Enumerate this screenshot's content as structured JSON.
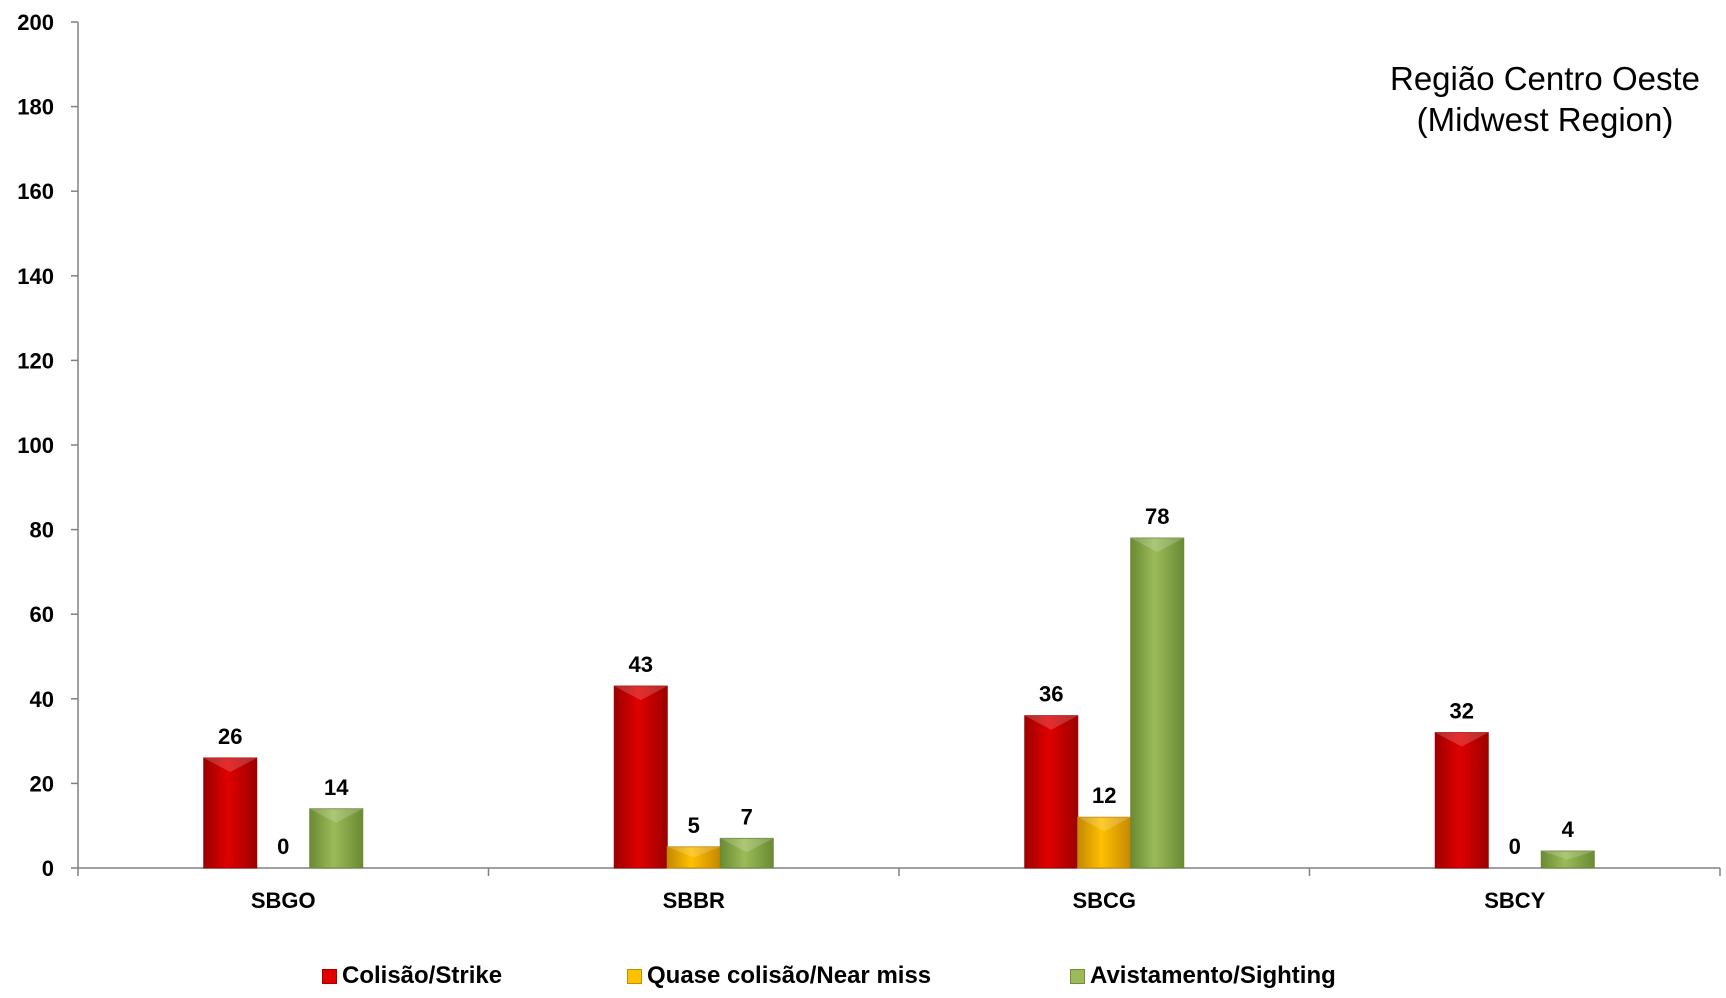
{
  "chart_data": {
    "type": "bar",
    "title_line1": "Região Centro Oeste",
    "title_line2": "(Midwest Region)",
    "categories": [
      "SBGO",
      "SBBR",
      "SBCG",
      "SBCY"
    ],
    "series": [
      {
        "name": "Colisão/Strike",
        "values": [
          26,
          43,
          36,
          32
        ],
        "color": "#e00000",
        "dark": "#9c0000"
      },
      {
        "name": "Quase colisão/Near miss",
        "values": [
          0,
          5,
          12,
          0
        ],
        "color": "#ffc000",
        "dark": "#c48800"
      },
      {
        "name": "Avistamento/Sighting",
        "values": [
          14,
          7,
          78,
          4
        ],
        "color": "#9bbb59",
        "dark": "#6a8a34"
      }
    ],
    "ylim": [
      0,
      200
    ],
    "yticks": [
      "0",
      "20",
      "40",
      "60",
      "80",
      "100",
      "120",
      "140",
      "160",
      "180",
      "200"
    ],
    "grid": false,
    "legend_position": "bottom"
  }
}
